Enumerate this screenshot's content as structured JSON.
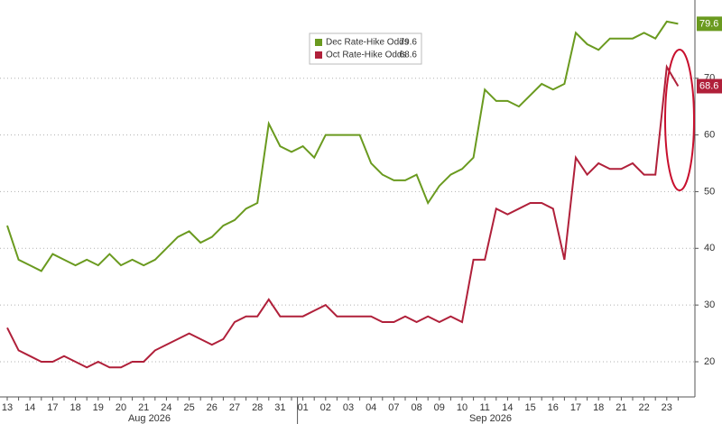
{
  "chart_data": {
    "type": "line",
    "categories": [
      "13",
      null,
      "14",
      null,
      "17",
      null,
      "18",
      null,
      "19",
      null,
      "20",
      null,
      "21",
      null,
      "24",
      null,
      "25",
      null,
      "26",
      null,
      "27",
      null,
      "28",
      null,
      "31",
      null,
      "01",
      null,
      "02",
      null,
      "03",
      null,
      "04",
      null,
      "07",
      null,
      "08",
      null,
      "09",
      null,
      "10",
      null,
      "11",
      null,
      "14",
      null,
      "15",
      null,
      "16",
      null,
      "17",
      null,
      "18",
      null,
      "21",
      null,
      "22",
      null,
      "23",
      null
    ],
    "months": [
      "Aug 2026",
      "Sep 2026"
    ],
    "series": [
      {
        "name": "Dec Rate-Hike Odds",
        "color": "#6a9a1f",
        "values": [
          44,
          38,
          37,
          36,
          39,
          38,
          37,
          38,
          37,
          39,
          37,
          38,
          37,
          38,
          40,
          42,
          43,
          41,
          42,
          44,
          45,
          47,
          48,
          62,
          58,
          57,
          58,
          56,
          60,
          60,
          60,
          60,
          55,
          53,
          52,
          52,
          53,
          48,
          51,
          53,
          54,
          56,
          68,
          66,
          66,
          65,
          67,
          69,
          68,
          69,
          78,
          76,
          75,
          77,
          77,
          77,
          78,
          77,
          80,
          79.6
        ]
      },
      {
        "name": "Oct Rate-Hike Odds",
        "color": "#b0203a",
        "values": [
          26,
          22,
          21,
          20,
          20,
          21,
          20,
          19,
          20,
          19,
          19,
          20,
          20,
          22,
          23,
          24,
          25,
          24,
          23,
          24,
          27,
          28,
          28,
          31,
          28,
          28,
          28,
          29,
          30,
          28,
          28,
          28,
          28,
          27,
          27,
          28,
          27,
          28,
          27,
          28,
          27,
          38,
          38,
          47,
          46,
          47,
          48,
          48,
          47,
          38,
          56,
          53,
          55,
          54,
          54,
          55,
          53,
          53,
          72,
          68.6
        ]
      }
    ],
    "ylim": [
      13,
      83
    ],
    "yticks": [
      20,
      30,
      40,
      50,
      60,
      70
    ],
    "grid": true
  }
}
